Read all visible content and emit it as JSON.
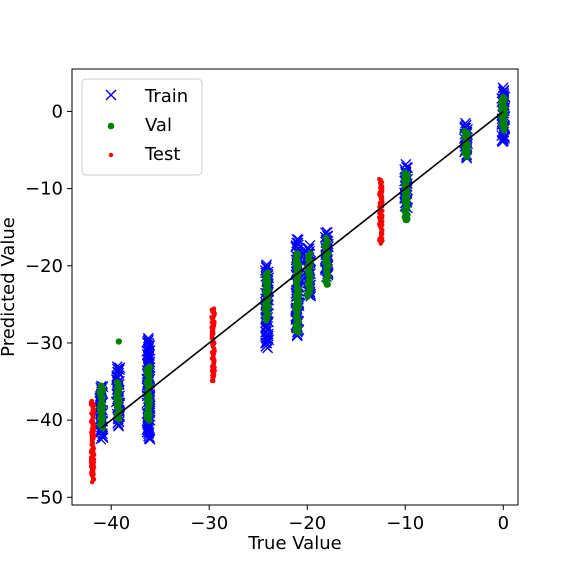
{
  "chart_data": {
    "type": "scatter",
    "title": "",
    "xlabel": "True Value",
    "ylabel": "Predicted Value",
    "xlim": [
      -44,
      1.5
    ],
    "ylim": [
      -51,
      5.5
    ],
    "x_ticks": [
      -40,
      -30,
      -20,
      -10,
      0
    ],
    "x_tick_labels": [
      "−40",
      "−30",
      "−20",
      "−10",
      "0"
    ],
    "y_ticks": [
      -50,
      -40,
      -30,
      -20,
      -10,
      0
    ],
    "y_tick_labels": [
      "−50",
      "−40",
      "−30",
      "−20",
      "−10",
      "0"
    ],
    "grid": false,
    "legend_position": "top-left",
    "identity_line": {
      "from": [
        -41,
        -41
      ],
      "to": [
        0,
        0
      ],
      "color": "#000000"
    },
    "series": [
      {
        "name": "Train",
        "marker": "x",
        "color": "#0000ff",
        "clusters": [
          {
            "x": -41,
            "y_min": -42.5,
            "y_max": -35.5
          },
          {
            "x": -39.3,
            "y_min": -40.8,
            "y_max": -33.0
          },
          {
            "x": -36.2,
            "y_min": -42.5,
            "y_max": -29.5
          },
          {
            "x": -24.1,
            "y_min": -30.5,
            "y_max": -20.0
          },
          {
            "x": -21.0,
            "y_min": -29.0,
            "y_max": -16.5
          },
          {
            "x": -19.8,
            "y_min": -24.0,
            "y_max": -17.5
          },
          {
            "x": -18.0,
            "y_min": -21.5,
            "y_max": -15.5
          },
          {
            "x": -9.9,
            "y_min": -12.5,
            "y_max": -7.0
          },
          {
            "x": -3.8,
            "y_min": -6.0,
            "y_max": -1.5
          },
          {
            "x": 0,
            "y_min": -4.0,
            "y_max": 3.0
          }
        ]
      },
      {
        "name": "Val",
        "marker": "o",
        "color": "#008000",
        "clusters": [
          {
            "x": -41,
            "y_min": -41.0,
            "y_max": -35.5
          },
          {
            "x": -39.3,
            "y_min": -40.0,
            "y_max": -35.0
          },
          {
            "x": -39.3,
            "y_min": -29.8,
            "y_max": -29.8
          },
          {
            "x": -36.2,
            "y_min": -40.0,
            "y_max": -33.0
          },
          {
            "x": -24.1,
            "y_min": -27.0,
            "y_max": -21.0
          },
          {
            "x": -21.0,
            "y_min": -28.5,
            "y_max": -18.5
          },
          {
            "x": -19.8,
            "y_min": -24.0,
            "y_max": -18.5
          },
          {
            "x": -18.0,
            "y_min": -22.5,
            "y_max": -16.5
          },
          {
            "x": -9.9,
            "y_min": -14.2,
            "y_max": -8.0
          },
          {
            "x": -3.8,
            "y_min": -5.8,
            "y_max": -2.5
          },
          {
            "x": 0,
            "y_min": -2.5,
            "y_max": 2.0
          }
        ]
      },
      {
        "name": "Test",
        "marker": "o-small",
        "color": "#ff0000",
        "clusters": [
          {
            "x": -41.9,
            "y_min": -48.0,
            "y_max": -37.5
          },
          {
            "x": -29.6,
            "y_min": -35.0,
            "y_max": -25.5
          },
          {
            "x": -12.5,
            "y_min": -17.0,
            "y_max": -8.7
          }
        ]
      }
    ]
  }
}
